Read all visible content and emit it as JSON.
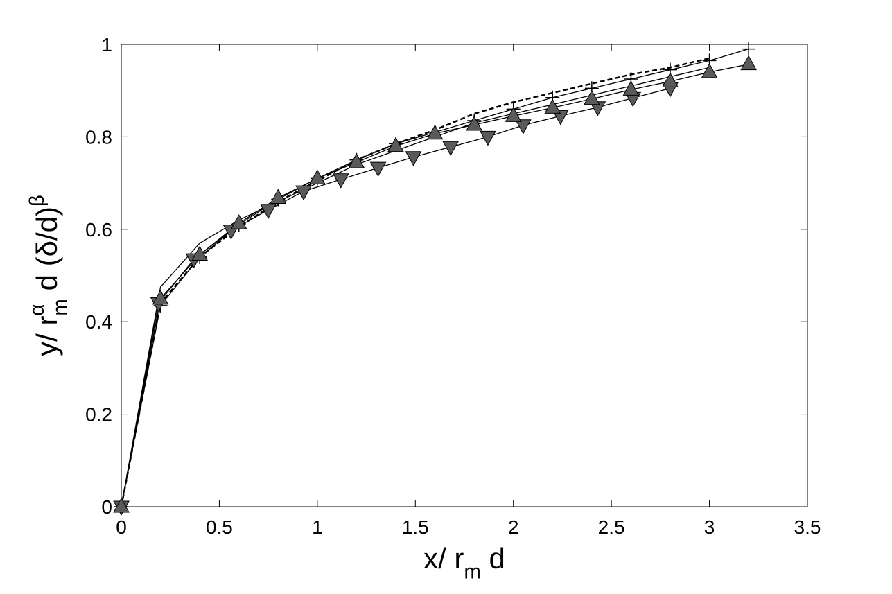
{
  "chart_data": {
    "type": "line",
    "xlabel": [
      {
        "text": "x/ r"
      },
      {
        "text": "m",
        "script": "sub"
      },
      {
        "text": " d"
      }
    ],
    "ylabel": [
      {
        "text": "y/ r"
      },
      {
        "text": "m",
        "script": "sub"
      },
      {
        "text": "α",
        "script": "sup"
      },
      {
        "text": " d (δ/d)"
      },
      {
        "text": "β",
        "script": "sup"
      }
    ],
    "xlim": [
      0,
      3.5
    ],
    "ylim": [
      0,
      1
    ],
    "xticks": [
      0,
      0.5,
      1,
      1.5,
      2,
      2.5,
      3,
      3.5
    ],
    "yticks": [
      0,
      0.2,
      0.4,
      0.6,
      0.8,
      1
    ],
    "grid": false,
    "series": [
      {
        "color": "#000000",
        "dash": "solid",
        "marker": "none",
        "x": [
          0,
          0.2,
          0.4,
          0.6,
          0.8,
          1.0,
          1.2,
          1.4,
          1.6,
          1.8,
          2.0,
          2.2,
          2.4,
          2.6,
          2.8,
          3.0
        ],
        "values": [
          0,
          0.475,
          0.57,
          0.62,
          0.66,
          0.7,
          0.74,
          0.77,
          0.8,
          0.83,
          0.85,
          0.87,
          0.89,
          0.91,
          0.93,
          0.95
        ]
      },
      {
        "color": "#000000",
        "dash": "dashed",
        "marker": "none",
        "x": [
          0,
          0.2,
          0.4,
          0.6,
          0.8,
          1.0,
          1.2,
          1.4,
          1.6,
          1.8,
          2.0,
          2.2,
          2.4,
          2.6,
          2.8,
          3.0
        ],
        "values": [
          0,
          0.44,
          0.54,
          0.605,
          0.66,
          0.705,
          0.75,
          0.785,
          0.815,
          0.85,
          0.875,
          0.895,
          0.915,
          0.935,
          0.95,
          0.97
        ]
      },
      {
        "color": "#000000",
        "dash": "solid",
        "marker": "plus",
        "x": [
          0,
          0.2,
          0.4,
          0.6,
          0.8,
          1.0,
          1.2,
          1.4,
          1.6,
          1.8,
          2.0,
          2.2,
          2.4,
          2.6,
          2.8,
          3.0,
          3.2
        ],
        "values": [
          0,
          0.435,
          0.54,
          0.61,
          0.665,
          0.71,
          0.75,
          0.785,
          0.81,
          0.835,
          0.86,
          0.885,
          0.905,
          0.925,
          0.945,
          0.965,
          0.99
        ]
      },
      {
        "color": "#000000",
        "dash": "solid",
        "marker": "triangle-down",
        "marker_color": "#5a5a5a",
        "x": [
          0,
          0.19,
          0.37,
          0.56,
          0.75,
          0.93,
          1.12,
          1.31,
          1.49,
          1.68,
          1.87,
          2.05,
          2.24,
          2.43,
          2.61,
          2.8
        ],
        "values": [
          0,
          0.44,
          0.535,
          0.597,
          0.642,
          0.682,
          0.708,
          0.733,
          0.756,
          0.778,
          0.8,
          0.825,
          0.845,
          0.864,
          0.884,
          0.905
        ]
      },
      {
        "color": "#000000",
        "dash": "solid",
        "marker": "triangle-up",
        "marker_color": "#5a5a5a",
        "x": [
          0,
          0.2,
          0.4,
          0.6,
          0.8,
          1.0,
          1.2,
          1.4,
          1.6,
          1.8,
          2.0,
          2.2,
          2.4,
          2.6,
          2.8,
          3.0,
          3.2
        ],
        "values": [
          0,
          0.45,
          0.545,
          0.613,
          0.668,
          0.71,
          0.745,
          0.78,
          0.807,
          0.826,
          0.845,
          0.863,
          0.882,
          0.902,
          0.92,
          0.94,
          0.957
        ]
      }
    ]
  }
}
